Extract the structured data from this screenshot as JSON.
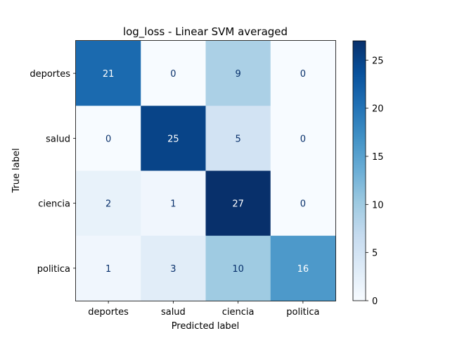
{
  "chart_data": {
    "type": "heatmap",
    "title": "log_loss - Linear SVM averaged",
    "xlabel": "Predicted label",
    "ylabel": "True label",
    "x_categories": [
      "deportes",
      "salud",
      "ciencia",
      "politica"
    ],
    "y_categories": [
      "deportes",
      "salud",
      "ciencia",
      "politica"
    ],
    "matrix": [
      [
        21,
        0,
        9,
        0
      ],
      [
        0,
        25,
        5,
        0
      ],
      [
        2,
        1,
        27,
        0
      ],
      [
        1,
        3,
        10,
        16
      ]
    ],
    "colormap": "Blues",
    "colorbar": {
      "range": [
        0,
        27
      ],
      "ticks": [
        0,
        5,
        10,
        15,
        20,
        25
      ]
    },
    "text_color_light": "#ffffff",
    "text_color_dark": "#08306b"
  }
}
